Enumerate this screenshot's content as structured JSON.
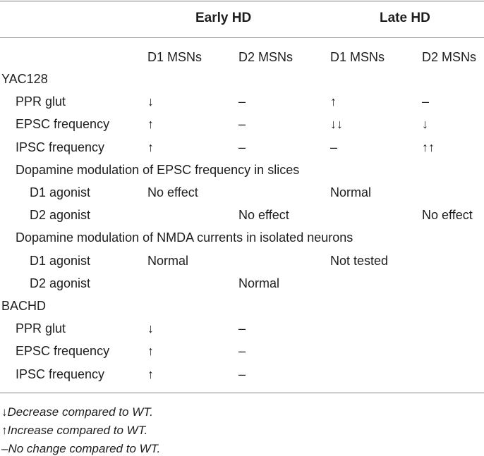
{
  "groups": [
    "Early HD",
    "Late HD"
  ],
  "columns": [
    "D1 MSNs",
    "D2 MSNs",
    "D1 MSNs",
    "D2 MSNs"
  ],
  "rows": [
    {
      "label": "YAC128",
      "level": 0,
      "cells": [
        "",
        "",
        "",
        ""
      ]
    },
    {
      "label": "PPR glut",
      "level": 1,
      "cells": [
        "↓",
        "–",
        "↑",
        "–"
      ]
    },
    {
      "label": "EPSC frequency",
      "level": 1,
      "cells": [
        "↑",
        "–",
        "↓↓",
        "↓"
      ]
    },
    {
      "label": "IPSC frequency",
      "level": 1,
      "cells": [
        "↑",
        "–",
        "–",
        "↑↑"
      ]
    },
    {
      "label": "Dopamine modulation of EPSC frequency in slices",
      "level": 1,
      "cells": [
        "",
        "",
        "",
        ""
      ]
    },
    {
      "label": "D1 agonist",
      "level": 2,
      "cells": [
        "No effect",
        "",
        "Normal",
        ""
      ]
    },
    {
      "label": "D2 agonist",
      "level": 2,
      "cells": [
        "",
        "No effect",
        "",
        "No effect"
      ]
    },
    {
      "label": "Dopamine modulation of NMDA currents in isolated neurons",
      "level": 1,
      "cells": [
        "",
        "",
        "",
        ""
      ]
    },
    {
      "label": "D1 agonist",
      "level": 2,
      "cells": [
        "Normal",
        "",
        "Not tested",
        ""
      ]
    },
    {
      "label": "D2 agonist",
      "level": 2,
      "cells": [
        "",
        "Normal",
        "",
        ""
      ]
    },
    {
      "label": "BACHD",
      "level": 0,
      "cells": [
        "",
        "",
        "",
        ""
      ]
    },
    {
      "label": "PPR glut",
      "level": 1,
      "cells": [
        "↓",
        "–",
        "",
        ""
      ]
    },
    {
      "label": "EPSC frequency",
      "level": 1,
      "cells": [
        "↑",
        "–",
        "",
        ""
      ]
    },
    {
      "label": "IPSC frequency",
      "level": 1,
      "cells": [
        "↑",
        "–",
        "",
        ""
      ]
    }
  ],
  "footnotes": [
    {
      "symbol": "↓",
      "text": "Decrease compared to WT."
    },
    {
      "symbol": "↑",
      "text": "Increase compared to WT."
    },
    {
      "symbol": "–",
      "text": "No change compared to WT."
    }
  ]
}
